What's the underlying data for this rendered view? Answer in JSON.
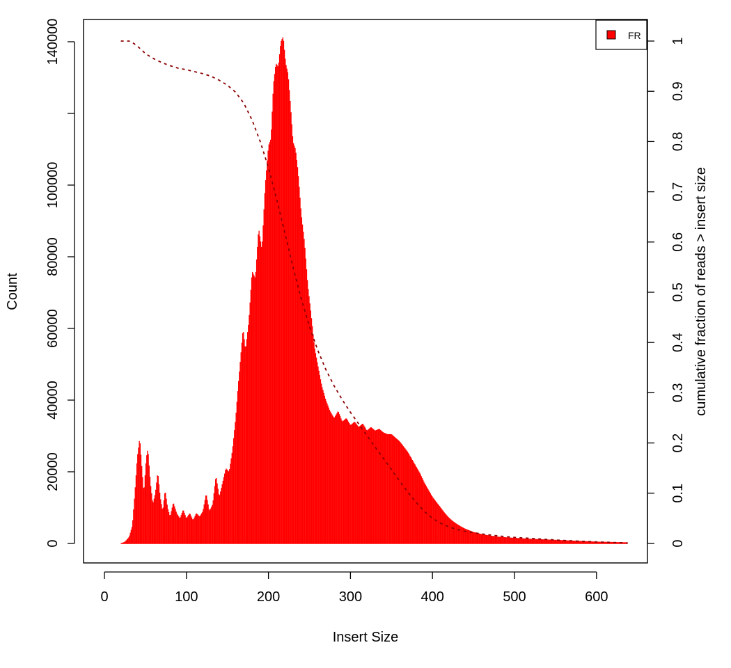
{
  "chart_data": {
    "type": "bar",
    "xlabel": "Insert Size",
    "ylabel": "Count",
    "y2label": "cumulative fraction of reads > insert size",
    "xlim": [
      0,
      640
    ],
    "ylim": [
      0,
      140000
    ],
    "y2lim": [
      0,
      1
    ],
    "xticks": [
      "0",
      "100",
      "200",
      "300",
      "400",
      "500",
      "600"
    ],
    "yticks": [
      "0",
      "20000",
      "40000",
      "60000",
      "80000",
      "100000",
      "140000"
    ],
    "y2ticks": [
      "0",
      "0.1",
      "0.2",
      "0.3",
      "0.4",
      "0.5",
      "0.6",
      "0.7",
      "0.8",
      "0.9",
      "1"
    ],
    "legend": {
      "position": "top-right",
      "entries": [
        {
          "label": "FR",
          "color": "#ff0000"
        }
      ]
    },
    "colors": {
      "bars": "#ff0000",
      "cumulative": "#8b0000"
    },
    "series": [
      {
        "name": "FR",
        "type": "histogram",
        "points": [
          [
            20,
            0
          ],
          [
            25,
            500
          ],
          [
            30,
            1800
          ],
          [
            34,
            5000
          ],
          [
            37,
            14000
          ],
          [
            40,
            24000
          ],
          [
            43,
            29500
          ],
          [
            46,
            20000
          ],
          [
            48,
            14000
          ],
          [
            51,
            24000
          ],
          [
            53,
            26500
          ],
          [
            56,
            17000
          ],
          [
            59,
            11000
          ],
          [
            62,
            14000
          ],
          [
            65,
            20000
          ],
          [
            68,
            13000
          ],
          [
            71,
            9000
          ],
          [
            74,
            15000
          ],
          [
            77,
            10000
          ],
          [
            80,
            7500
          ],
          [
            84,
            11500
          ],
          [
            88,
            8500
          ],
          [
            92,
            7000
          ],
          [
            96,
            9500
          ],
          [
            100,
            7000
          ],
          [
            104,
            8500
          ],
          [
            108,
            6500
          ],
          [
            112,
            8500
          ],
          [
            116,
            7500
          ],
          [
            120,
            9000
          ],
          [
            124,
            14000
          ],
          [
            128,
            9000
          ],
          [
            132,
            11000
          ],
          [
            136,
            19000
          ],
          [
            140,
            13000
          ],
          [
            144,
            17000
          ],
          [
            148,
            21000
          ],
          [
            152,
            20000
          ],
          [
            156,
            26000
          ],
          [
            160,
            35000
          ],
          [
            163,
            44000
          ],
          [
            166,
            52000
          ],
          [
            169,
            60000
          ],
          [
            172,
            54000
          ],
          [
            176,
            62000
          ],
          [
            180,
            76000
          ],
          [
            184,
            74000
          ],
          [
            188,
            88000
          ],
          [
            192,
            82000
          ],
          [
            196,
            100000
          ],
          [
            200,
            111000
          ],
          [
            203,
            113000
          ],
          [
            206,
            128000
          ],
          [
            209,
            134000
          ],
          [
            212,
            133000
          ],
          [
            215,
            140000
          ],
          [
            218,
            141500
          ],
          [
            221,
            134000
          ],
          [
            224,
            131000
          ],
          [
            227,
            122000
          ],
          [
            230,
            112000
          ],
          [
            233,
            110000
          ],
          [
            236,
            104000
          ],
          [
            240,
            92000
          ],
          [
            244,
            84000
          ],
          [
            248,
            72000
          ],
          [
            252,
            64000
          ],
          [
            256,
            55000
          ],
          [
            260,
            50000
          ],
          [
            265,
            44000
          ],
          [
            270,
            40000
          ],
          [
            275,
            37000
          ],
          [
            280,
            35000
          ],
          [
            285,
            37000
          ],
          [
            290,
            34000
          ],
          [
            295,
            35000
          ],
          [
            300,
            33000
          ],
          [
            305,
            34000
          ],
          [
            310,
            32500
          ],
          [
            315,
            33500
          ],
          [
            320,
            31500
          ],
          [
            325,
            32500
          ],
          [
            330,
            31500
          ],
          [
            335,
            32000
          ],
          [
            340,
            31000
          ],
          [
            345,
            30500
          ],
          [
            350,
            30500
          ],
          [
            355,
            29500
          ],
          [
            360,
            28500
          ],
          [
            365,
            27000
          ],
          [
            370,
            25500
          ],
          [
            375,
            23500
          ],
          [
            380,
            21500
          ],
          [
            385,
            19500
          ],
          [
            390,
            17000
          ],
          [
            395,
            15000
          ],
          [
            400,
            13000
          ],
          [
            405,
            11500
          ],
          [
            410,
            10000
          ],
          [
            415,
            8500
          ],
          [
            420,
            7200
          ],
          [
            425,
            6200
          ],
          [
            430,
            5400
          ],
          [
            435,
            4700
          ],
          [
            440,
            4100
          ],
          [
            450,
            3200
          ],
          [
            460,
            2600
          ],
          [
            470,
            2200
          ],
          [
            480,
            1900
          ],
          [
            490,
            1700
          ],
          [
            500,
            1550
          ],
          [
            520,
            1300
          ],
          [
            540,
            1100
          ],
          [
            560,
            900
          ],
          [
            580,
            700
          ],
          [
            600,
            500
          ],
          [
            620,
            400
          ],
          [
            638,
            300
          ]
        ]
      },
      {
        "name": "cumulative",
        "type": "line",
        "dashed": true,
        "points": [
          [
            20,
            1.0
          ],
          [
            30,
            1.0
          ],
          [
            36,
            0.995
          ],
          [
            40,
            0.99
          ],
          [
            45,
            0.983
          ],
          [
            50,
            0.975
          ],
          [
            60,
            0.965
          ],
          [
            70,
            0.957
          ],
          [
            80,
            0.951
          ],
          [
            90,
            0.946
          ],
          [
            100,
            0.943
          ],
          [
            110,
            0.939
          ],
          [
            120,
            0.935
          ],
          [
            130,
            0.93
          ],
          [
            140,
            0.922
          ],
          [
            150,
            0.912
          ],
          [
            160,
            0.898
          ],
          [
            170,
            0.876
          ],
          [
            180,
            0.843
          ],
          [
            190,
            0.8
          ],
          [
            200,
            0.748
          ],
          [
            210,
            0.685
          ],
          [
            220,
            0.618
          ],
          [
            230,
            0.55
          ],
          [
            240,
            0.487
          ],
          [
            250,
            0.432
          ],
          [
            260,
            0.385
          ],
          [
            270,
            0.346
          ],
          [
            280,
            0.314
          ],
          [
            290,
            0.286
          ],
          [
            300,
            0.261
          ],
          [
            310,
            0.238
          ],
          [
            320,
            0.215
          ],
          [
            330,
            0.192
          ],
          [
            340,
            0.17
          ],
          [
            350,
            0.147
          ],
          [
            360,
            0.124
          ],
          [
            370,
            0.102
          ],
          [
            380,
            0.082
          ],
          [
            390,
            0.064
          ],
          [
            400,
            0.05
          ],
          [
            410,
            0.04
          ],
          [
            420,
            0.033
          ],
          [
            430,
            0.028
          ],
          [
            440,
            0.024
          ],
          [
            460,
            0.019
          ],
          [
            480,
            0.015
          ],
          [
            500,
            0.012
          ],
          [
            530,
            0.009
          ],
          [
            560,
            0.006
          ],
          [
            600,
            0.003
          ],
          [
            638,
            0.001
          ]
        ]
      }
    ]
  }
}
